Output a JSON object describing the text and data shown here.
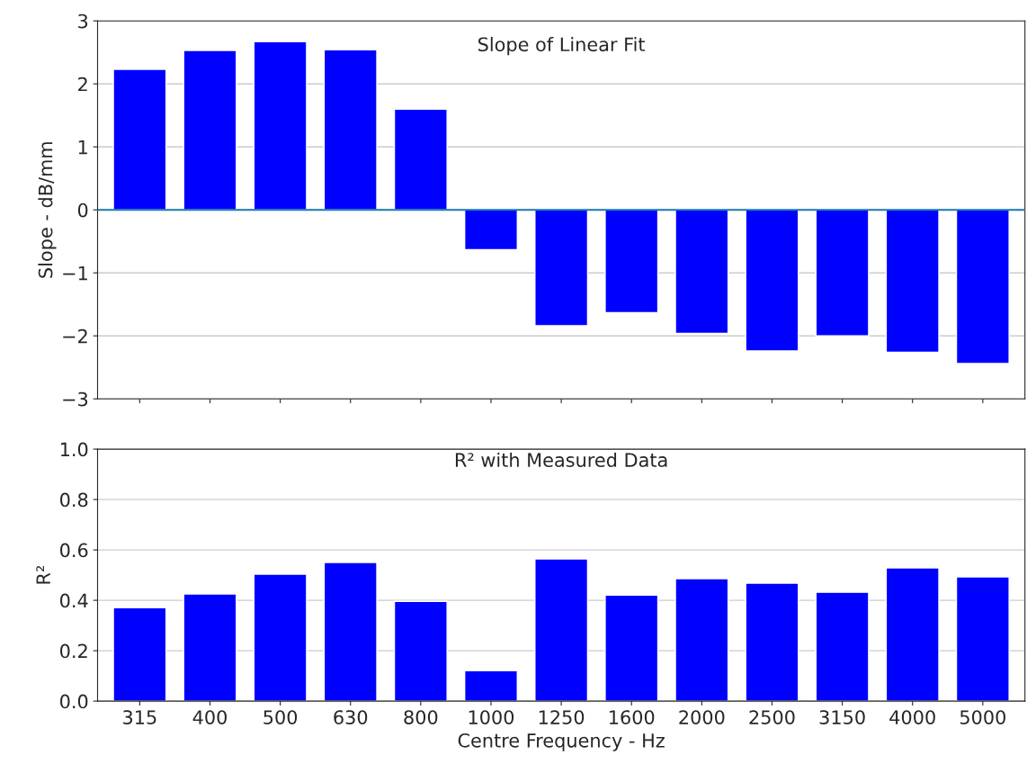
{
  "chart_data": [
    {
      "type": "bar",
      "title": "Slope of Linear Fit",
      "ylabel": "Slope - dB/mm",
      "categories": [
        "315",
        "400",
        "500",
        "630",
        "800",
        "1000",
        "1250",
        "1600",
        "2000",
        "2500",
        "3150",
        "4000",
        "5000"
      ],
      "values": [
        2.23,
        2.53,
        2.67,
        2.54,
        1.6,
        -0.63,
        -1.84,
        -1.63,
        -1.96,
        -2.24,
        -2.0,
        -2.26,
        -2.44
      ],
      "color": "#0000ff",
      "ylim": [
        -3,
        3
      ],
      "yticks": [
        {
          "value": -3,
          "label": "−3"
        },
        {
          "value": -2,
          "label": "−2"
        },
        {
          "value": -1,
          "label": "−1"
        },
        0,
        1,
        2,
        3
      ],
      "grid": "y",
      "tick_labels": "y",
      "ref_lines": [
        {
          "axis": "y",
          "value": 0,
          "color": "#1f77b4"
        }
      ]
    },
    {
      "type": "bar",
      "title": "R² with Measured Data",
      "ylabel": "R²",
      "xlabel": "Centre Frequency - Hz",
      "categories": [
        "315",
        "400",
        "500",
        "630",
        "800",
        "1000",
        "1250",
        "1600",
        "2000",
        "2500",
        "3150",
        "4000",
        "5000"
      ],
      "values": [
        0.371,
        0.425,
        0.504,
        0.55,
        0.396,
        0.121,
        0.564,
        0.421,
        0.486,
        0.468,
        0.432,
        0.529,
        0.493
      ],
      "color": "#0000ff",
      "ylim": [
        0,
        1
      ],
      "yticks": [
        {
          "value": 0,
          "label": "0.0"
        },
        {
          "value": 0.2,
          "label": "0.2"
        },
        {
          "value": 0.4,
          "label": "0.4"
        },
        {
          "value": 0.6,
          "label": "0.6"
        },
        {
          "value": 0.8,
          "label": "0.8"
        },
        {
          "value": 1,
          "label": "1.0"
        }
      ],
      "grid": "y"
    }
  ]
}
